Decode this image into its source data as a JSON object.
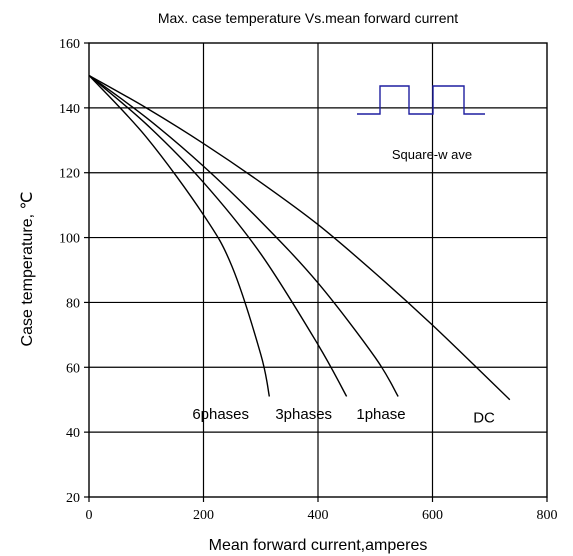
{
  "chart_data": {
    "type": "line",
    "title": "Max. case temperature  Vs.mean  forward  current",
    "xlabel": "Mean  forward   current,amperes",
    "ylabel": "Case temperature, ℃",
    "xlim": [
      0,
      800
    ],
    "ylim": [
      20,
      160
    ],
    "xticks": [
      0,
      200,
      400,
      600,
      800
    ],
    "yticks": [
      20,
      40,
      60,
      80,
      100,
      120,
      140,
      160
    ],
    "x_tick_labels": [
      "0",
      "200",
      "400",
      "600",
      "800"
    ],
    "y_tick_labels": [
      "20",
      "40",
      "60",
      "80",
      "100",
      "120",
      "140",
      "160"
    ],
    "grid": true,
    "series": [
      {
        "name": "DC",
        "color": "#000000",
        "x": [
          0,
          100,
          200,
          300,
          400,
          500,
          600,
          700,
          735
        ],
        "y": [
          150,
          140,
          129,
          117,
          104,
          89,
          73,
          56,
          50
        ]
      },
      {
        "name": "1phase",
        "color": "#000000",
        "x": [
          0,
          100,
          200,
          300,
          400,
          500,
          540
        ],
        "y": [
          150,
          137,
          122,
          105,
          86,
          63,
          51
        ]
      },
      {
        "name": "3phases",
        "color": "#000000",
        "x": [
          0,
          100,
          200,
          300,
          400,
          450
        ],
        "y": [
          150,
          135,
          117,
          95,
          67,
          51
        ]
      },
      {
        "name": "6phases",
        "color": "#000000",
        "x": [
          0,
          100,
          200,
          250,
          300,
          315
        ],
        "y": [
          150,
          131,
          107,
          91,
          64,
          51
        ]
      }
    ],
    "annotations": [
      {
        "text": "6phases",
        "x": 230,
        "y": 44
      },
      {
        "text": "3phases",
        "x": 375,
        "y": 44
      },
      {
        "text": "1phase",
        "x": 510,
        "y": 44
      },
      {
        "text": "DC",
        "x": 690,
        "y": 43
      }
    ],
    "inset": {
      "label": "Square-w ave",
      "color": "#1f1fa0"
    }
  }
}
